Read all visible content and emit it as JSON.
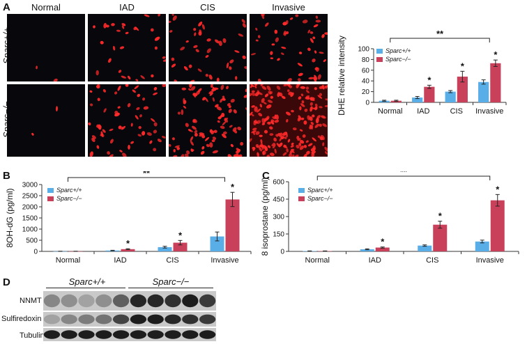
{
  "panels": {
    "A": "A",
    "B": "B",
    "C": "C",
    "D": "D"
  },
  "micrographs": {
    "columns": [
      "Normal",
      "IAD",
      "CIS",
      "Invasive"
    ],
    "rows": [
      "Sparc+/+",
      "Sparc−/−"
    ],
    "stain_color": "#ff2a2a",
    "background_color": "#07070c",
    "cell_density": [
      [
        2,
        28,
        40,
        50
      ],
      [
        2,
        60,
        95,
        220
      ]
    ]
  },
  "colors": {
    "wildtype": "#5aaee8",
    "knockout": "#c8405a"
  },
  "sig_marks": {
    "single": "*",
    "double": "**"
  },
  "chart_data": [
    {
      "type": "bar",
      "panel": "A",
      "categories": [
        "Normal",
        "IAD",
        "CIS",
        "Invasive"
      ],
      "series": [
        {
          "name": "Sparc+/+",
          "values": [
            3,
            9,
            20,
            38
          ],
          "errors": [
            1,
            2,
            2,
            4
          ]
        },
        {
          "name": "Sparc−/−",
          "values": [
            3,
            29,
            48,
            73
          ],
          "errors": [
            1,
            3,
            10,
            6
          ]
        }
      ],
      "ylabel": "DHE relative intensity",
      "ylim": [
        0,
        100
      ],
      "yticks": [
        0,
        20,
        40,
        60,
        80,
        100
      ],
      "significance": [
        "",
        "*",
        "*",
        "*"
      ],
      "bracket": {
        "from": "Normal",
        "to": "Invasive",
        "label": "**"
      },
      "legend": "top-left"
    },
    {
      "type": "bar",
      "panel": "B",
      "categories": [
        "Normal",
        "IAD",
        "CIS",
        "Invasive"
      ],
      "series": [
        {
          "name": "Sparc+/+",
          "values": [
            5,
            40,
            190,
            670
          ],
          "errors": [
            2,
            10,
            40,
            200
          ]
        },
        {
          "name": "Sparc−/−",
          "values": [
            5,
            100,
            390,
            2330
          ],
          "errors": [
            2,
            20,
            100,
            320
          ]
        }
      ],
      "ylabel": "8OH-dG (pg/ml)",
      "ylim": [
        0,
        3000
      ],
      "yticks": [
        0,
        500,
        1000,
        1500,
        2000,
        2500,
        3000
      ],
      "significance": [
        "",
        "*",
        "*",
        "*"
      ],
      "bracket": {
        "from": "Normal",
        "to": "Invasive",
        "label": "**"
      },
      "legend": "top-left"
    },
    {
      "type": "bar",
      "panel": "C",
      "categories": [
        "Normal",
        "IAD",
        "CIS",
        "Invasive"
      ],
      "series": [
        {
          "name": "Sparc+/+",
          "values": [
            3,
            18,
            50,
            85
          ],
          "errors": [
            1,
            4,
            6,
            12
          ]
        },
        {
          "name": "Sparc−/−",
          "values": [
            3,
            33,
            230,
            440
          ],
          "errors": [
            1,
            5,
            30,
            50
          ]
        }
      ],
      "ylabel": "8 isoprostane (pg/ml)",
      "ylim": [
        0,
        600
      ],
      "yticks": [
        0,
        150,
        300,
        450,
        600
      ],
      "significance": [
        "",
        "*",
        "*",
        "*"
      ],
      "bracket": {
        "from": "Normal",
        "to": "Invasive",
        "label": "**"
      },
      "legend": "top-left"
    }
  ],
  "blot": {
    "groups": [
      {
        "label": "Sparc+/+",
        "lanes": 5
      },
      {
        "label": "Sparc−/−",
        "lanes": 5
      }
    ],
    "rows": [
      {
        "name": "NNMT",
        "intensity": [
          0.35,
          0.3,
          0.2,
          0.3,
          0.55,
          0.85,
          0.85,
          0.8,
          0.9,
          0.75
        ]
      },
      {
        "name": "Sulfiredoxin",
        "intensity": [
          0.2,
          0.35,
          0.4,
          0.45,
          0.7,
          0.9,
          0.9,
          0.85,
          0.8,
          0.75
        ]
      },
      {
        "name": "Tubulin",
        "intensity": [
          0.9,
          0.9,
          0.9,
          0.9,
          0.9,
          0.9,
          0.9,
          0.9,
          0.9,
          0.9
        ]
      }
    ]
  }
}
